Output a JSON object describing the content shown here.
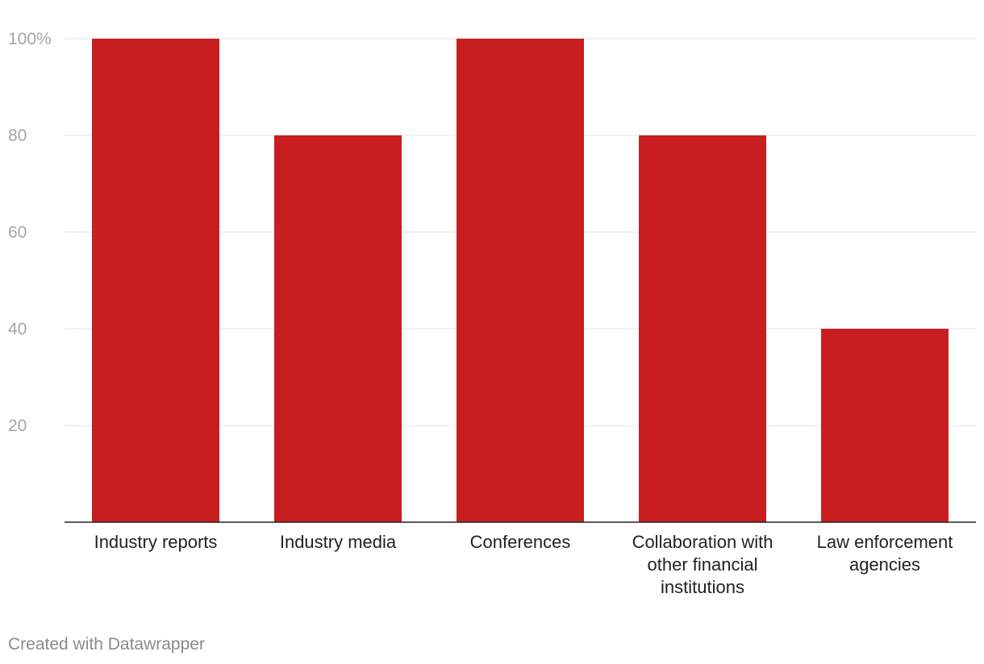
{
  "chart_data": {
    "type": "bar",
    "title": "",
    "xlabel": "",
    "ylabel": "",
    "ylim": [
      0,
      100
    ],
    "y_ticks": [
      {
        "value": 20,
        "label": "20"
      },
      {
        "value": 40,
        "label": "40"
      },
      {
        "value": 60,
        "label": "60"
      },
      {
        "value": 80,
        "label": "80"
      },
      {
        "value": 100,
        "label": "100%"
      }
    ],
    "grid": true,
    "bar_color": "#c91e1f",
    "categories": [
      {
        "key": "industry-reports",
        "lines": [
          "Industry reports"
        ]
      },
      {
        "key": "industry-media",
        "lines": [
          "Industry media"
        ]
      },
      {
        "key": "conferences",
        "lines": [
          "Conferences"
        ]
      },
      {
        "key": "collaboration-with-other-financial-institutions",
        "lines": [
          "Collaboration with",
          "other financial",
          "institutions"
        ]
      },
      {
        "key": "law-enforcement-agencies",
        "lines": [
          "Law enforcement",
          "agencies"
        ]
      }
    ],
    "values": [
      100,
      80,
      100,
      80,
      40
    ]
  },
  "footer": {
    "credit": "Created with Datawrapper"
  }
}
